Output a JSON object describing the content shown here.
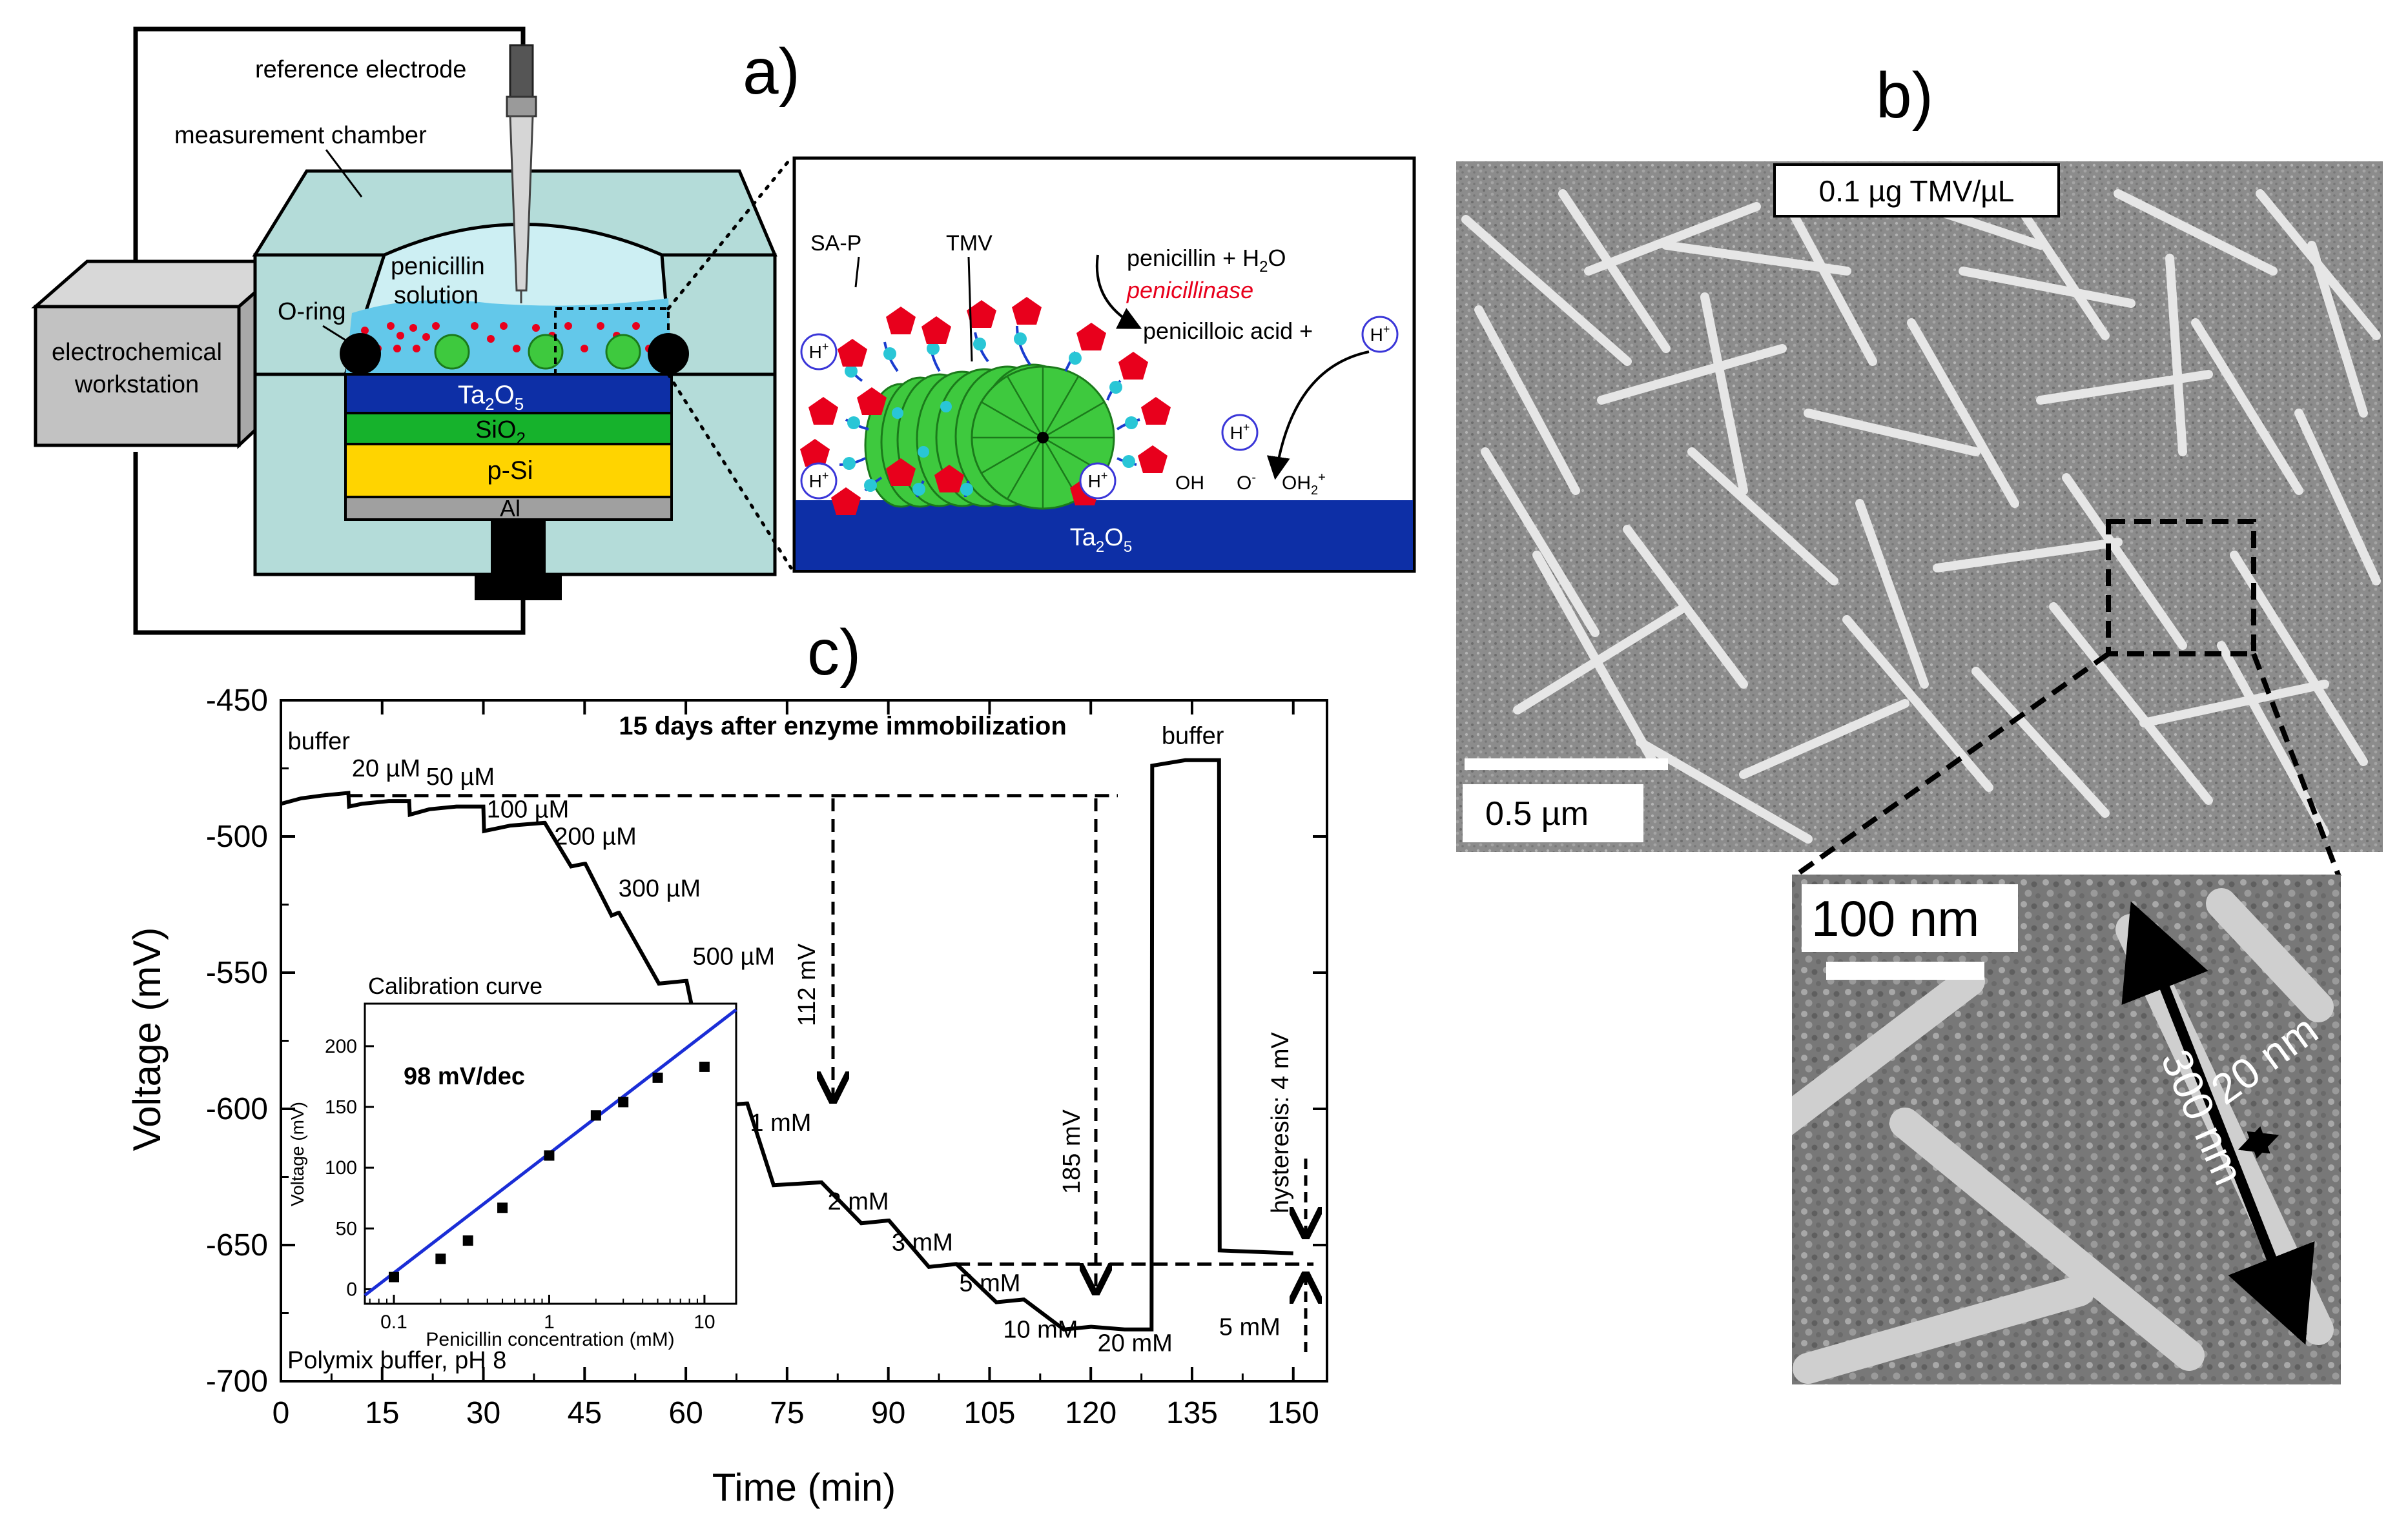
{
  "panel_labels": {
    "a": "a)",
    "b": "b)",
    "c": "c)"
  },
  "panel_a": {
    "reference_electrode": "reference electrode",
    "measurement_chamber": "measurement chamber",
    "workstation_line1": "electrochemical",
    "workstation_line2": "workstation",
    "penicillin_line1": "penicillin",
    "penicillin_line2": "solution",
    "o_ring": "O-ring",
    "layer_ta2o5_main": "Ta",
    "layer_ta2o5_sub": "2",
    "layer_ta2o5_tail": "O",
    "layer_ta2o5_sub2": "5",
    "layer_sio2_main": "SiO",
    "layer_sio2_sub": "2",
    "layer_psi": "p-Si",
    "layer_al": "Al",
    "zoom": {
      "sa_p": "SA-P",
      "tmv": "TMV",
      "reaction_line1": "penicillin + H",
      "reaction_h2o_sub": "2",
      "reaction_h2o_tail": "O",
      "enzyme": "penicillinase",
      "reaction_line3": "penicilloic acid +",
      "proton_main": "H",
      "proton_sup": "+",
      "oh": "OH",
      "o_minus_main": "O",
      "o_minus_sup": "-",
      "oh2_main": "OH",
      "oh2_sub": "2",
      "oh2_sup": "+",
      "substrate_main": "Ta",
      "substrate_sub": "2",
      "substrate_tail": "O",
      "substrate_sub2": "5"
    }
  },
  "panel_b": {
    "concentration_label": "0.1 µg TMV/µL",
    "scalebar_main": "0.5 µm",
    "scalebar_zoom": "100 nm",
    "length_label": "300 nm",
    "width_label": "20 nm"
  },
  "colors": {
    "chamber": "#b4dcd9",
    "solution": "#63c8ea",
    "ta2o5": "#0d2fa6",
    "sio2": "#16b22c",
    "psi": "#ffd400",
    "al": "#a0a0a0",
    "tmv": "#3ec93e",
    "sap": "#e8001c",
    "linker": "#1a3ccf",
    "fit_line": "#1a2dd6",
    "enzyme_text": "#e8001c"
  },
  "chart_data": [
    {
      "type": "line",
      "title": "15 days after enzyme immobilization",
      "xlabel": "Time (min)",
      "ylabel": "Voltage (mV)",
      "xlim": [
        0,
        155
      ],
      "ylim": [
        -700,
        -450
      ],
      "xticks": [
        "0",
        "15",
        "30",
        "45",
        "60",
        "75",
        "90",
        "105",
        "120",
        "135",
        "150"
      ],
      "yticks": [
        "-450",
        "-500",
        "-550",
        "-600",
        "-650",
        "-700"
      ],
      "buffer_note": "Polymix buffer, pH 8",
      "series": [
        {
          "x": [
            0,
            3,
            6,
            10,
            10.1,
            12,
            16,
            19,
            19.1,
            22,
            26,
            30,
            30.1,
            34,
            39,
            39.1,
            43,
            45,
            45.1,
            49,
            50,
            50.1,
            56,
            60,
            60.1,
            64,
            69,
            69.1,
            73,
            80,
            80.1,
            86,
            90,
            90.1,
            96,
            100,
            100.1,
            106,
            110,
            110.1,
            116,
            120,
            120.1,
            125,
            129,
            129.1,
            134,
            139,
            139.1,
            150
          ],
          "y": [
            -488,
            -486,
            -485,
            -484,
            -489,
            -488,
            -487,
            -487,
            -492,
            -490,
            -489,
            -489,
            -498,
            -496,
            -495,
            -495,
            -511,
            -510,
            -510,
            -529,
            -528,
            -528,
            -554,
            -553,
            -553,
            -599,
            -598,
            -598,
            -628,
            -627,
            -627,
            -642,
            -641,
            -641,
            -658,
            -657,
            -657,
            -671,
            -670,
            -670,
            -681,
            -680,
            -680,
            -681,
            -681,
            -474,
            -472,
            -472,
            -652,
            -653
          ]
        }
      ],
      "step_labels": [
        "buffer",
        "20 µM",
        "50 µM",
        "100 µM",
        "200 µM",
        "300 µM",
        "500 µM",
        "1 mM",
        "2 mM",
        "3 mM",
        "5 mM",
        "10 mM",
        "20 mM",
        "buffer",
        "5 mM"
      ],
      "annotations": [
        "112 mV",
        "185 mV",
        "hysteresis: 4 mV"
      ],
      "reference_levels": [
        -485,
        -657
      ]
    },
    {
      "type": "scatter",
      "title": "Calibration curve",
      "xlabel": "Penicillin concentration (mM)",
      "ylabel": "Voltage (mV)",
      "xscale": "log",
      "xlim": [
        0.065,
        16
      ],
      "ylim": [
        -12,
        235
      ],
      "xticks": [
        "0.1",
        "1",
        "10"
      ],
      "yticks": [
        "0",
        "50",
        "100",
        "150",
        "200"
      ],
      "annotation": "98 mV/dec",
      "points": {
        "x": [
          0.1,
          0.2,
          0.3,
          0.5,
          1,
          2,
          3,
          5,
          10
        ],
        "y": [
          10,
          25,
          40,
          67,
          110,
          143,
          154,
          174,
          183
        ]
      },
      "fit": {
        "slope_mv_per_decade": 98,
        "x": [
          0.065,
          16
        ],
        "y": [
          -5,
          230
        ]
      }
    }
  ]
}
